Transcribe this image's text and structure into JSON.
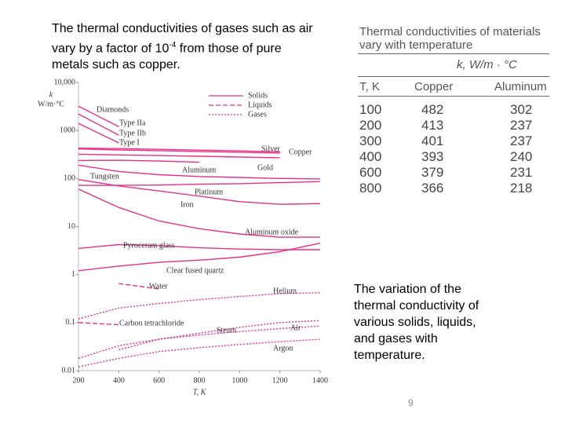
{
  "intro": {
    "text": "The thermal conductivities of gases such as air vary by a factor of 10",
    "exponent": "-4",
    "rest": " from those of pure metals such as copper."
  },
  "table": {
    "title": [
      "Thermal conductivities of materials",
      "vary with temperature"
    ],
    "unit": "k, W/m · °C",
    "columns": [
      "T, K",
      "Copper",
      "Aluminum"
    ],
    "rows": [
      [
        100,
        482,
        302
      ],
      [
        200,
        413,
        237
      ],
      [
        300,
        401,
        237
      ],
      [
        400,
        393,
        240
      ],
      [
        600,
        379,
        231
      ],
      [
        800,
        366,
        218
      ]
    ]
  },
  "caption": "The variation of the thermal conductivity of various solids, liquids, and gases with temperature.",
  "page_number": 9,
  "chart_data": {
    "type": "line",
    "y_label": [
      "k",
      "W/m·°C"
    ],
    "x_label": "T, K",
    "color": "#e8308a",
    "log_y": true,
    "x": [
      200,
      400,
      600,
      800,
      1000,
      1200,
      1400
    ],
    "xlim": [
      200,
      1400
    ],
    "xticks": [
      200,
      400,
      600,
      800,
      1000,
      1200,
      1400
    ],
    "ylim": [
      0.01,
      10000
    ],
    "yticks": [
      0.01,
      0.1,
      1,
      10,
      100,
      1000,
      {
        "value": 10000,
        "label": "10,000"
      }
    ],
    "legend": [
      {
        "name": "Solids",
        "dash": "solid"
      },
      {
        "name": "Liquids",
        "dash": "dashed"
      },
      {
        "name": "Gases",
        "dash": "dotted"
      }
    ],
    "annotations": [
      "Diamonds"
    ],
    "series": [
      {
        "name": "Type IIa",
        "dash": "solid",
        "values": [
          3200,
          1200,
          null,
          null,
          null,
          null,
          null
        ]
      },
      {
        "name": "Type IIb",
        "dash": "solid",
        "values": [
          2200,
          800,
          null,
          null,
          null,
          null,
          null
        ]
      },
      {
        "name": "Type I",
        "dash": "solid",
        "values": [
          1400,
          550,
          null,
          null,
          null,
          null,
          null
        ]
      },
      {
        "name": "Silver",
        "dash": "solid",
        "values": [
          430,
          420,
          405,
          390,
          375,
          360,
          null
        ]
      },
      {
        "name": "Copper",
        "dash": "solid",
        "values": [
          413,
          393,
          379,
          366,
          352,
          339,
          null
        ]
      },
      {
        "name": "Gold",
        "dash": "solid",
        "values": [
          320,
          310,
          300,
          290,
          280,
          270,
          null
        ]
      },
      {
        "name": "Aluminum",
        "dash": "solid",
        "values": [
          237,
          240,
          231,
          218,
          null,
          null,
          null
        ]
      },
      {
        "name": "Tungsten",
        "dash": "solid",
        "values": [
          190,
          140,
          120,
          110,
          105,
          100,
          98
        ]
      },
      {
        "name": "Platinum",
        "dash": "solid",
        "values": [
          72,
          72,
          73,
          76,
          78,
          82,
          86
        ]
      },
      {
        "name": "Iron",
        "dash": "solid",
        "values": [
          95,
          70,
          55,
          43,
          33,
          29,
          30
        ]
      },
      {
        "name": "Aluminum oxide",
        "dash": "solid",
        "values": [
          60,
          25,
          13,
          9,
          7,
          6,
          6
        ]
      },
      {
        "name": "Pyroceram glass",
        "dash": "solid",
        "values": [
          3.5,
          4.2,
          4,
          3.6,
          3.4,
          3.3,
          3.3
        ]
      },
      {
        "name": "Clear fused quartz",
        "dash": "solid",
        "values": [
          1.2,
          1.5,
          1.8,
          2,
          2.3,
          3,
          4.5
        ]
      },
      {
        "name": "Water",
        "dash": "dashed",
        "values": [
          null,
          0.65,
          0.5,
          null,
          null,
          null,
          null
        ]
      },
      {
        "name": "Helium",
        "dash": "dotted",
        "values": [
          0.12,
          0.2,
          0.25,
          0.3,
          0.35,
          0.4,
          0.42
        ]
      },
      {
        "name": "Carbon tetrachloride",
        "dash": "dashed",
        "values": [
          0.1,
          0.09,
          null,
          null,
          null,
          null,
          null
        ]
      },
      {
        "name": "Steam",
        "dash": "dotted",
        "values": [
          null,
          0.027,
          0.045,
          0.06,
          0.08,
          0.1,
          0.11
        ]
      },
      {
        "name": "Air",
        "dash": "dotted",
        "values": [
          0.018,
          0.033,
          0.045,
          0.055,
          0.065,
          0.075,
          0.085
        ]
      },
      {
        "name": "Argon",
        "dash": "dotted",
        "values": [
          0.012,
          0.018,
          0.025,
          0.03,
          0.035,
          0.04,
          0.045
        ]
      }
    ]
  }
}
